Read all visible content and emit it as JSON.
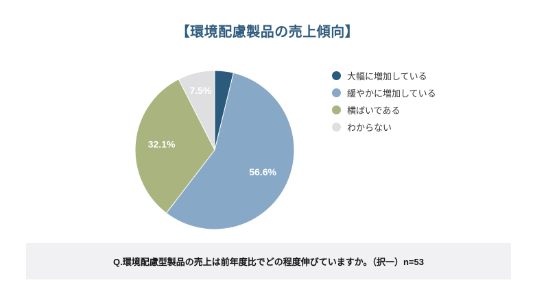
{
  "title": "【環境配慮製品の売上傾向】",
  "colors": {
    "title_text": "#2e5b7e",
    "question_bar_bg": "#f1f1f4",
    "question_text": "#111111",
    "background": "#ffffff",
    "pie_label_text": "#ffffff"
  },
  "question": "Q.環境配慮型製品の売上は前年度比でどの程度伸びていますか。（択一）n=53",
  "chart_data": {
    "type": "pie",
    "title": "環境配慮製品の売上傾向",
    "categories": [
      "大幅に増加している",
      "緩やかに増加している",
      "横ばいである",
      "わからない"
    ],
    "values": [
      3.8,
      56.6,
      32.1,
      7.5
    ],
    "slice_labels": [
      "",
      "56.6%",
      "32.1%",
      "7.5%"
    ],
    "colors": [
      "#2a5a7c",
      "#87a9c7",
      "#a9b47e",
      "#dfdfe2"
    ],
    "unit": "%",
    "start_angle_deg": 0,
    "direction": "clockwise",
    "legend_position": "right",
    "sample_size_note": "n=53"
  }
}
